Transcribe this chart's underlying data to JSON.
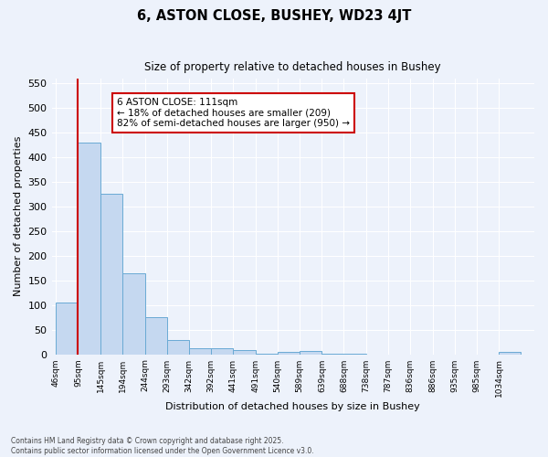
{
  "title": "6, ASTON CLOSE, BUSHEY, WD23 4JT",
  "subtitle": "Size of property relative to detached houses in Bushey",
  "xlabel": "Distribution of detached houses by size in Bushey",
  "ylabel": "Number of detached properties",
  "bar_values": [
    105,
    430,
    325,
    165,
    75,
    28,
    13,
    13,
    9,
    1,
    4,
    6,
    1,
    1,
    0,
    0,
    0,
    0,
    0,
    0,
    4
  ],
  "tick_labels": [
    "46sqm",
    "95sqm",
    "145sqm",
    "194sqm",
    "244sqm",
    "293sqm",
    "342sqm",
    "392sqm",
    "441sqm",
    "491sqm",
    "540sqm",
    "589sqm",
    "639sqm",
    "688sqm",
    "738sqm",
    "787sqm",
    "836sqm",
    "886sqm",
    "935sqm",
    "985sqm",
    "1034sqm"
  ],
  "bar_color": "#c5d8f0",
  "bar_edge_color": "#6aaad4",
  "background_color": "#edf2fb",
  "grid_color": "#ffffff",
  "annotation_text": "6 ASTON CLOSE: 111sqm\n← 18% of detached houses are smaller (209)\n82% of semi-detached houses are larger (950) →",
  "vline_color": "#cc0000",
  "annotation_box_edgecolor": "#cc0000",
  "ylim": [
    0,
    560
  ],
  "yticks": [
    0,
    50,
    100,
    150,
    200,
    250,
    300,
    350,
    400,
    450,
    500,
    550
  ],
  "footer": "Contains HM Land Registry data © Crown copyright and database right 2025.\nContains public sector information licensed under the Open Government Licence v3.0.",
  "bin_edges": [
    46,
    95,
    145,
    194,
    244,
    293,
    342,
    392,
    441,
    491,
    540,
    589,
    639,
    688,
    738,
    787,
    836,
    886,
    935,
    985,
    1034,
    1083
  ]
}
